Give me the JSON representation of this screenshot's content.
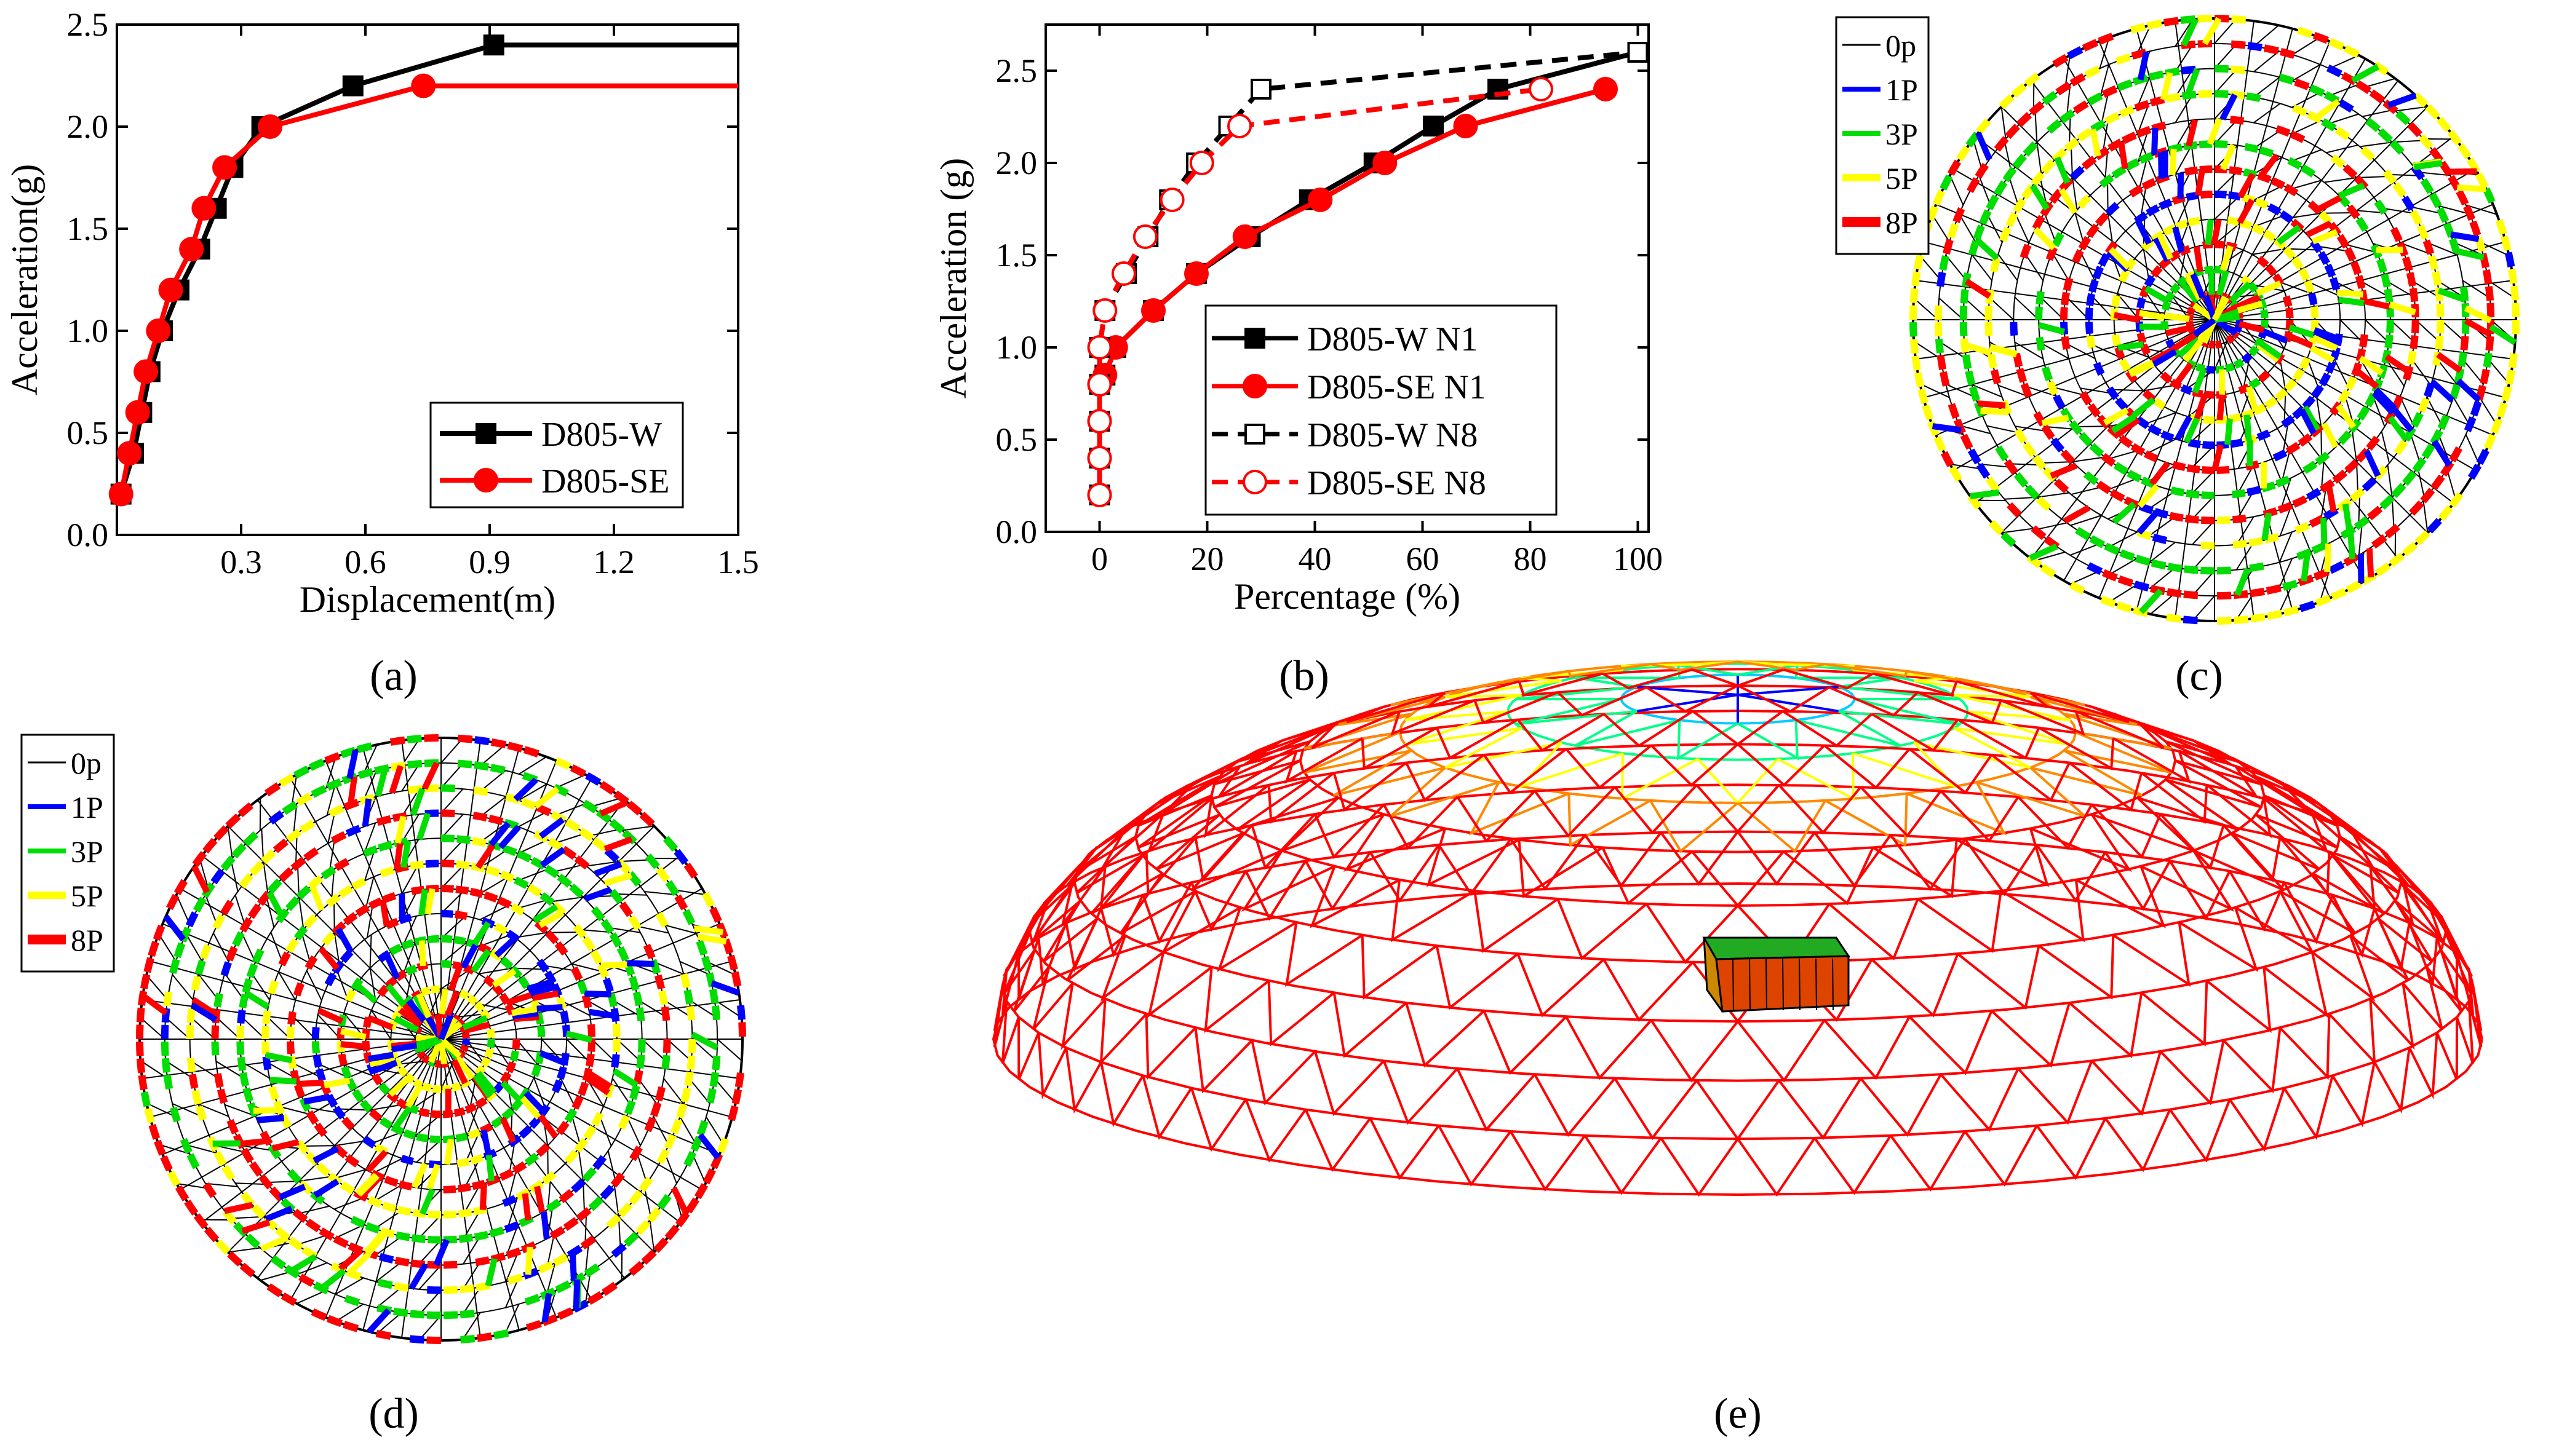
{
  "figure": {
    "panel_labels": [
      "(a)",
      "(b)",
      "(c)",
      "(d)",
      "(e)"
    ]
  },
  "chart_data": [
    {
      "panel": "(a)",
      "type": "line",
      "title": "",
      "xlabel": "Displacement(m)",
      "ylabel": "Acceleration(g)",
      "xlim": [
        0,
        1.5
      ],
      "ylim": [
        0,
        2.5
      ],
      "xticks": [
        0.3,
        0.6,
        0.9,
        1.2,
        1.5
      ],
      "xtick_labels": [
        "0.3",
        "0.6",
        "0.9",
        "1.2",
        "1.5"
      ],
      "yticks": [
        0.0,
        0.5,
        1.0,
        1.5,
        2.0,
        2.5
      ],
      "ytick_labels": [
        "0.0",
        "0.5",
        "1.0",
        "1.5",
        "2.0",
        "2.5"
      ],
      "legend_position": "bottom-right",
      "series": [
        {
          "name": "D805-W",
          "color": "#000000",
          "marker": "square-filled",
          "dash": "solid",
          "x": [
            0.01,
            0.04,
            0.06,
            0.08,
            0.11,
            0.15,
            0.2,
            0.24,
            0.28,
            0.35,
            0.57,
            0.91,
            1.5
          ],
          "y": [
            0.2,
            0.4,
            0.6,
            0.8,
            1.0,
            1.2,
            1.4,
            1.6,
            1.8,
            2.0,
            2.2,
            2.4,
            2.4
          ],
          "markers_at": [
            0,
            1,
            2,
            3,
            4,
            5,
            6,
            7,
            8,
            9,
            10,
            11
          ]
        },
        {
          "name": "D805-SE",
          "color": "#ff0000",
          "marker": "circle-filled",
          "dash": "solid",
          "x": [
            0.01,
            0.03,
            0.05,
            0.07,
            0.1,
            0.13,
            0.18,
            0.21,
            0.26,
            0.37,
            0.74,
            1.5
          ],
          "y": [
            0.2,
            0.4,
            0.6,
            0.8,
            1.0,
            1.2,
            1.4,
            1.6,
            1.8,
            2.0,
            2.2,
            2.2
          ],
          "markers_at": [
            0,
            1,
            2,
            3,
            4,
            5,
            6,
            7,
            8,
            9,
            10
          ]
        }
      ]
    },
    {
      "panel": "(b)",
      "type": "line",
      "title": "",
      "xlabel": "Percentage (%)",
      "ylabel": "Acceleration (g)",
      "xlim": [
        -10,
        102
      ],
      "ylim": [
        0,
        2.75
      ],
      "xticks": [
        0,
        20,
        40,
        60,
        80,
        100
      ],
      "xtick_labels": [
        "0",
        "20",
        "40",
        "60",
        "80",
        "100"
      ],
      "yticks": [
        0.0,
        0.5,
        1.0,
        1.5,
        2.0,
        2.5
      ],
      "ytick_labels": [
        "0.0",
        "0.5",
        "1.0",
        "1.5",
        "2.0",
        "2.5"
      ],
      "legend_position": "center",
      "series": [
        {
          "name": "D805-W N1",
          "color": "#000000",
          "marker": "square-filled",
          "dash": "solid",
          "x": [
            0,
            0,
            0,
            0,
            1,
            3,
            10,
            18,
            28,
            39,
            51,
            62,
            74,
            100
          ],
          "y": [
            0.2,
            0.4,
            0.6,
            0.8,
            0.85,
            1.0,
            1.2,
            1.4,
            1.6,
            1.8,
            2.0,
            2.2,
            2.4,
            2.6
          ]
        },
        {
          "name": "D805-SE N1",
          "color": "#ff0000",
          "marker": "circle-filled",
          "dash": "solid",
          "x": [
            0,
            0,
            0,
            0,
            1,
            3,
            10,
            18,
            27,
            41,
            53,
            68,
            94
          ],
          "y": [
            0.2,
            0.4,
            0.6,
            0.8,
            0.85,
            1.0,
            1.2,
            1.4,
            1.6,
            1.8,
            2.0,
            2.2,
            2.4
          ]
        },
        {
          "name": "D805-W N8",
          "color": "#000000",
          "marker": "square-open",
          "dash": "dashed",
          "x": [
            0,
            0,
            0,
            0,
            0,
            1,
            5,
            9,
            13,
            18,
            24,
            30,
            100
          ],
          "y": [
            0.2,
            0.4,
            0.6,
            0.8,
            1.0,
            1.2,
            1.4,
            1.6,
            1.8,
            2.0,
            2.2,
            2.4,
            2.6
          ]
        },
        {
          "name": "D805-SE N8",
          "color": "#ff0000",
          "marker": "circle-open",
          "dash": "dashed",
          "x": [
            0,
            0,
            0,
            0,
            0,
            1,
            4.5,
            8.5,
            13.5,
            19,
            26,
            82
          ],
          "y": [
            0.2,
            0.4,
            0.6,
            0.8,
            1.0,
            1.2,
            1.4,
            1.6,
            1.8,
            2.0,
            2.2,
            2.4
          ]
        }
      ]
    }
  ],
  "plan_views": {
    "legend": [
      {
        "label": "0p",
        "color": "#000000"
      },
      {
        "label": "1P",
        "color": "#0000ff"
      },
      {
        "label": "3P",
        "color": "#00dd00"
      },
      {
        "label": "5P",
        "color": "#ffff00"
      },
      {
        "label": "8P",
        "color": "#ff0000"
      }
    ],
    "ring_colors_c": [
      "#ff0000",
      "#00dd00",
      "#ff0000",
      "#ffff00",
      "#0000ff",
      "#ff0000",
      "#00dd00",
      "#ff0000",
      "#ffff00",
      "#00dd00",
      "#ff0000",
      "#ffff00"
    ],
    "ring_colors_d": [
      "#ff0000",
      "#ffff00",
      "#ff0000",
      "#00dd00",
      "#0000ff",
      "#ff0000",
      "#ffff00",
      "#00dd00",
      "#ff0000",
      "#ffff00",
      "#00dd00",
      "#ff0000"
    ]
  },
  "dome_view": {
    "colors": [
      "#ff0000",
      "#ff8800",
      "#ffff00",
      "#00ff88",
      "#00ccff",
      "#0000ff"
    ]
  }
}
